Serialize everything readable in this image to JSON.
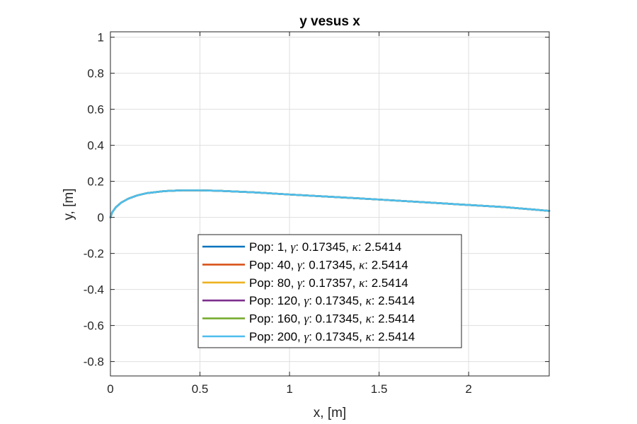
{
  "chart_data": {
    "type": "line",
    "title": "y vesus x",
    "xlabel": "x, [m]",
    "ylabel": "y, [m]",
    "xlim": [
      0,
      2.45
    ],
    "ylim": [
      -0.88,
      1.03
    ],
    "xticks": [
      0,
      0.5,
      1,
      1.5,
      2
    ],
    "xtick_labels": [
      "0",
      "0.5",
      "1",
      "1.5",
      "2"
    ],
    "yticks": [
      1,
      0.8,
      0.6,
      0.4,
      0.2,
      0,
      -0.2,
      -0.4,
      -0.6,
      -0.8
    ],
    "ytick_labels": [
      "1",
      "0.8",
      "0.6",
      "0.4",
      "0.2",
      "0",
      "-0.2",
      "-0.4",
      "-0.6",
      "-0.8"
    ],
    "grid": true,
    "legend_position": "lower-center",
    "series": [
      {
        "name": "Pop: 1, γ: 0.17345, κ: 2.5414",
        "legend": {
          "prefix": "Pop: 1, ",
          "gamma": "0.17345",
          "kappa": "2.5414"
        },
        "color": "#0072BD",
        "x": [
          0,
          0.01,
          0.03,
          0.06,
          0.1,
          0.15,
          0.2,
          0.3,
          0.4,
          0.5,
          0.6,
          0.8,
          1.0,
          1.2,
          1.5,
          1.8,
          2.0,
          2.2,
          2.45
        ],
        "y": [
          0,
          0.028,
          0.056,
          0.082,
          0.104,
          0.122,
          0.134,
          0.146,
          0.15,
          0.15,
          0.148,
          0.139,
          0.127,
          0.116,
          0.099,
          0.081,
          0.069,
          0.057,
          0.036
        ]
      },
      {
        "name": "Pop: 40, γ: 0.17345, κ: 2.5414",
        "legend": {
          "prefix": "Pop: 40, ",
          "gamma": "0.17345",
          "kappa": "2.5414"
        },
        "color": "#D95319",
        "x": [
          0,
          0.01,
          0.03,
          0.06,
          0.1,
          0.15,
          0.2,
          0.3,
          0.4,
          0.5,
          0.6,
          0.8,
          1.0,
          1.2,
          1.5,
          1.8,
          2.0,
          2.2,
          2.45
        ],
        "y": [
          0,
          0.028,
          0.056,
          0.082,
          0.104,
          0.122,
          0.134,
          0.146,
          0.15,
          0.15,
          0.148,
          0.139,
          0.127,
          0.116,
          0.099,
          0.081,
          0.069,
          0.057,
          0.036
        ]
      },
      {
        "name": "Pop: 80, γ: 0.17357, κ: 2.5414",
        "legend": {
          "prefix": "Pop: 80, ",
          "gamma": "0.17357",
          "kappa": "2.5414"
        },
        "color": "#EDB120",
        "x": [
          0,
          0.01,
          0.03,
          0.06,
          0.1,
          0.15,
          0.2,
          0.3,
          0.4,
          0.5,
          0.6,
          0.8,
          1.0,
          1.2,
          1.5,
          1.8,
          2.0,
          2.2,
          2.45
        ],
        "y": [
          0,
          0.028,
          0.056,
          0.082,
          0.104,
          0.122,
          0.134,
          0.146,
          0.15,
          0.15,
          0.148,
          0.139,
          0.127,
          0.116,
          0.099,
          0.081,
          0.069,
          0.057,
          0.036
        ]
      },
      {
        "name": "Pop: 120, γ: 0.17345, κ: 2.5414",
        "legend": {
          "prefix": "Pop: 120, ",
          "gamma": "0.17345",
          "kappa": "2.5414"
        },
        "color": "#7E2F8E",
        "x": [
          0,
          0.01,
          0.03,
          0.06,
          0.1,
          0.15,
          0.2,
          0.3,
          0.4,
          0.5,
          0.6,
          0.8,
          1.0,
          1.2,
          1.5,
          1.8,
          2.0,
          2.2,
          2.45
        ],
        "y": [
          0,
          0.028,
          0.056,
          0.082,
          0.104,
          0.122,
          0.134,
          0.146,
          0.15,
          0.15,
          0.148,
          0.139,
          0.127,
          0.116,
          0.099,
          0.081,
          0.069,
          0.057,
          0.036
        ]
      },
      {
        "name": "Pop: 160, γ: 0.17345, κ: 2.5414",
        "legend": {
          "prefix": "Pop: 160, ",
          "gamma": "0.17345",
          "kappa": "2.5414"
        },
        "color": "#77AC30",
        "x": [
          0,
          0.01,
          0.03,
          0.06,
          0.1,
          0.15,
          0.2,
          0.3,
          0.4,
          0.5,
          0.6,
          0.8,
          1.0,
          1.2,
          1.5,
          1.8,
          2.0,
          2.2,
          2.45
        ],
        "y": [
          0,
          0.028,
          0.056,
          0.082,
          0.104,
          0.122,
          0.134,
          0.146,
          0.15,
          0.15,
          0.148,
          0.139,
          0.127,
          0.116,
          0.099,
          0.081,
          0.069,
          0.057,
          0.036
        ]
      },
      {
        "name": "Pop: 200, γ: 0.17345, κ: 2.5414",
        "legend": {
          "prefix": "Pop: 200, ",
          "gamma": "0.17345",
          "kappa": "2.5414"
        },
        "color": "#4DBEEE",
        "x": [
          0,
          0.01,
          0.03,
          0.06,
          0.1,
          0.15,
          0.2,
          0.3,
          0.4,
          0.5,
          0.6,
          0.8,
          1.0,
          1.2,
          1.5,
          1.8,
          2.0,
          2.2,
          2.45
        ],
        "y": [
          0,
          0.028,
          0.056,
          0.082,
          0.104,
          0.122,
          0.134,
          0.146,
          0.15,
          0.15,
          0.148,
          0.139,
          0.127,
          0.116,
          0.099,
          0.081,
          0.069,
          0.057,
          0.036
        ]
      }
    ]
  }
}
